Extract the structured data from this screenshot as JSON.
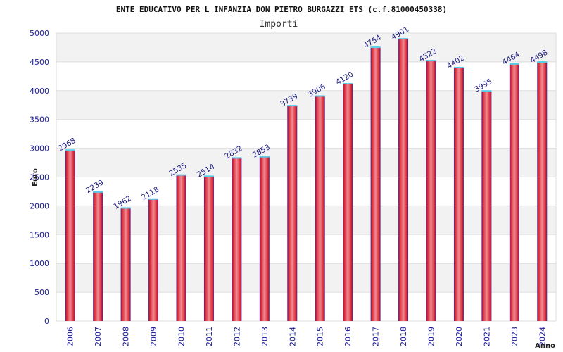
{
  "chart_data": {
    "type": "bar",
    "title": "ENTE EDUCATIVO PER L INFANZIA DON PIETRO BURGAZZI ETS (c.f.81000450338)",
    "subtitle": "Importi",
    "xlabel": "Anno",
    "ylabel": "Euro",
    "ylim": [
      0,
      5000
    ],
    "yticks": [
      0,
      500,
      1000,
      1500,
      2000,
      2500,
      3000,
      3500,
      4000,
      4500,
      5000
    ],
    "grid": true,
    "categories": [
      "2006",
      "2007",
      "2008",
      "2009",
      "2010",
      "2011",
      "2012",
      "2013",
      "2014",
      "2015",
      "2016",
      "2017",
      "2018",
      "2019",
      "2020",
      "2021",
      "2023",
      "2024"
    ],
    "series": [
      {
        "values": [
          2968,
          2239,
          1962,
          2118,
          2535,
          2514,
          2832,
          2853,
          3739,
          3906,
          4120,
          4754,
          4901,
          4522,
          4402,
          3995,
          4464,
          4498
        ]
      }
    ],
    "colors": {
      "bar": "#e8232f",
      "bar_edge": "#2222aa",
      "bar_top": "#55ccee",
      "band": "#f2f2f2"
    }
  }
}
